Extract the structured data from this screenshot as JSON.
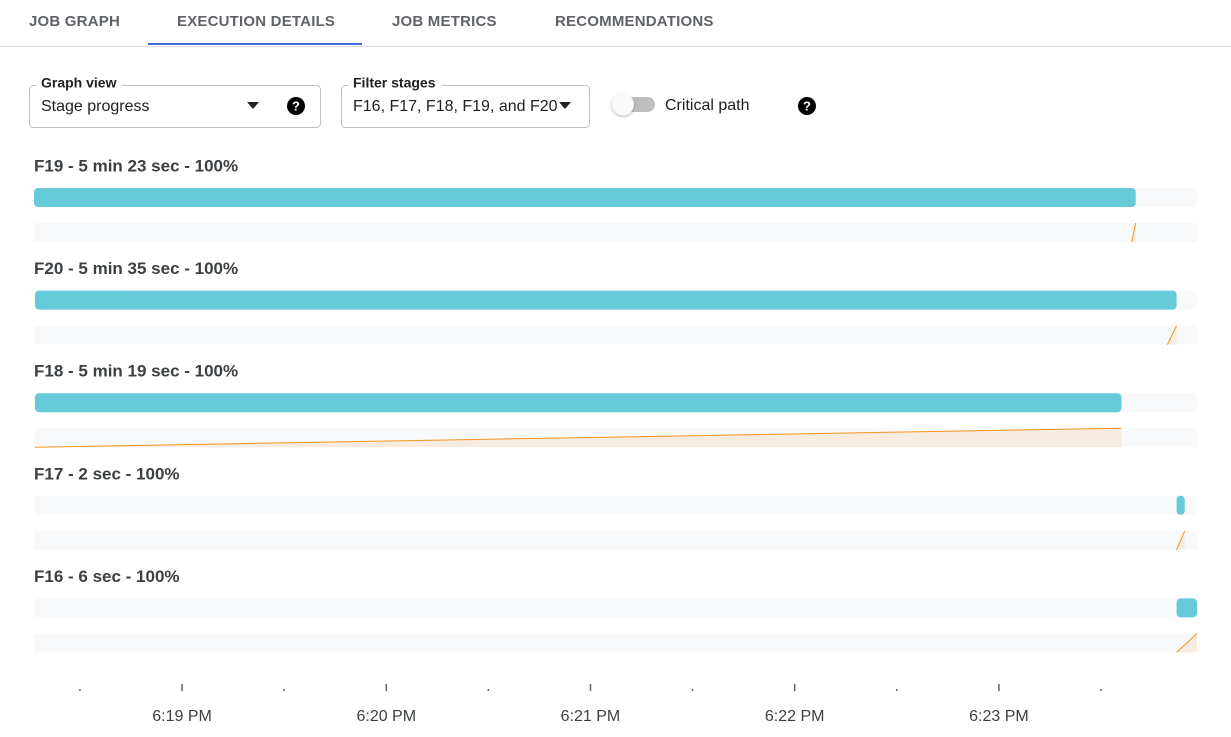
{
  "tabs": [
    "JOB GRAPH",
    "EXECUTION DETAILS",
    "JOB METRICS",
    "RECOMMENDATIONS"
  ],
  "active_tab": 1,
  "controls": {
    "graph_view": {
      "label": "Graph view",
      "value": "Stage progress"
    },
    "filter_stages": {
      "label": "Filter stages",
      "value": "F16, F17, F18, F19, and F20"
    },
    "critical_path": {
      "label": "Critical path",
      "on": false
    }
  },
  "chart_data": {
    "type": "timeline",
    "xlim": [
      18.275,
      23.97
    ],
    "xticks": [
      {
        "value": 19,
        "label": "6:19 PM"
      },
      {
        "value": 20,
        "label": "6:20 PM"
      },
      {
        "value": 21,
        "label": "6:21 PM"
      },
      {
        "value": 22,
        "label": "6:22 PM"
      },
      {
        "value": 23,
        "label": "6:23 PM"
      }
    ],
    "minor_xticks": [
      18.5,
      19.5,
      20.5,
      21.5,
      22.5,
      23.5
    ],
    "bar_color": "#66cbd9",
    "progress_color": "#f7941d",
    "stages": [
      {
        "label": "F19 - 5 min 23 sec - 100%",
        "start": 18.275,
        "end": 23.67,
        "progress": [
          23.65,
          23.67
        ]
      },
      {
        "label": "F20 - 5 min 35 sec - 100%",
        "start": 18.28,
        "end": 23.87,
        "progress": [
          23.825,
          23.87
        ]
      },
      {
        "label": "F18 - 5 min 19 sec - 100%",
        "start": 18.28,
        "end": 23.6,
        "progress": [
          18.28,
          23.6
        ]
      },
      {
        "label": "F17 - 2 sec - 100%",
        "start": 23.87,
        "end": 23.91,
        "progress": [
          23.87,
          23.91
        ]
      },
      {
        "label": "F16 - 6 sec - 100%",
        "start": 23.87,
        "end": 23.97,
        "progress": [
          23.87,
          23.97
        ]
      }
    ]
  }
}
